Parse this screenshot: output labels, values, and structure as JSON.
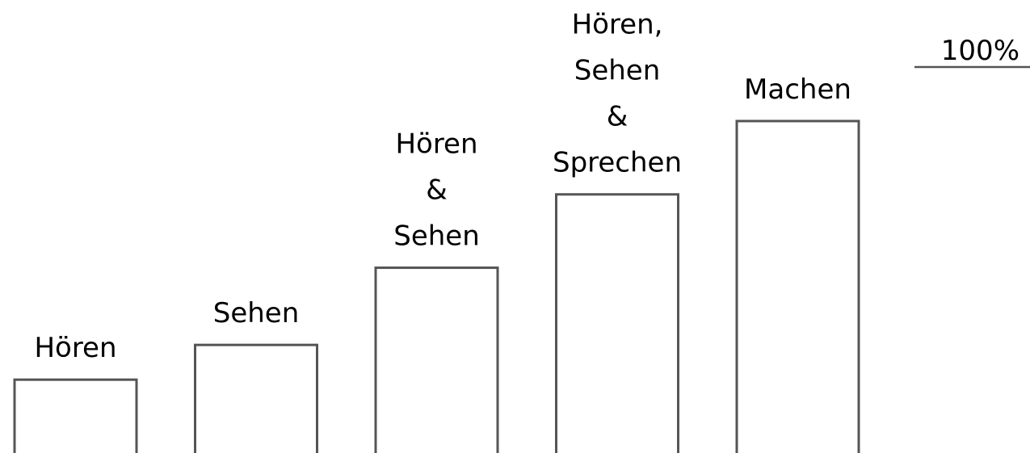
{
  "chart_data": {
    "type": "bar",
    "categories": [
      [
        "Hören"
      ],
      [
        "Sehen"
      ],
      [
        "Hören",
        "&",
        "Sehen"
      ],
      [
        "Hören,",
        "Sehen",
        "&",
        "Sprechen"
      ],
      [
        "Machen"
      ]
    ],
    "values": [
      19,
      28,
      48,
      67,
      86
    ],
    "color": "#555555",
    "ylim": [
      0,
      100
    ],
    "yticks": [
      {
        "value": 100,
        "label": "100%"
      }
    ]
  }
}
